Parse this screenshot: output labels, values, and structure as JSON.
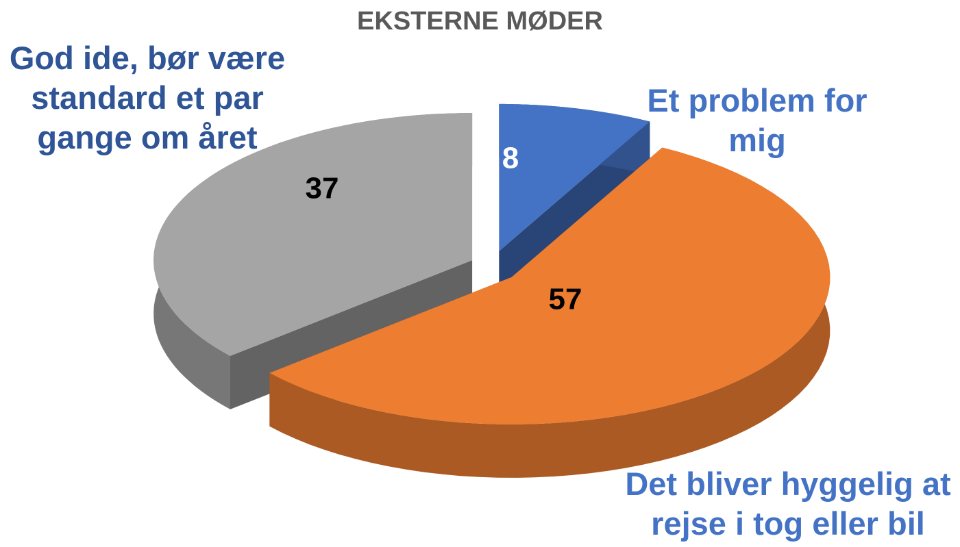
{
  "chart_data": {
    "type": "pie",
    "title": "EKSTERNE MØDER",
    "categories": [
      "Et problem for mig",
      "Det bliver hyggelig at rejse i tog eller bil",
      "God ide, bør være standard et par gange om året"
    ],
    "values": [
      8,
      57,
      37
    ],
    "colors": [
      "#4472c4",
      "#ed7d31",
      "#a5a5a5"
    ]
  }
}
